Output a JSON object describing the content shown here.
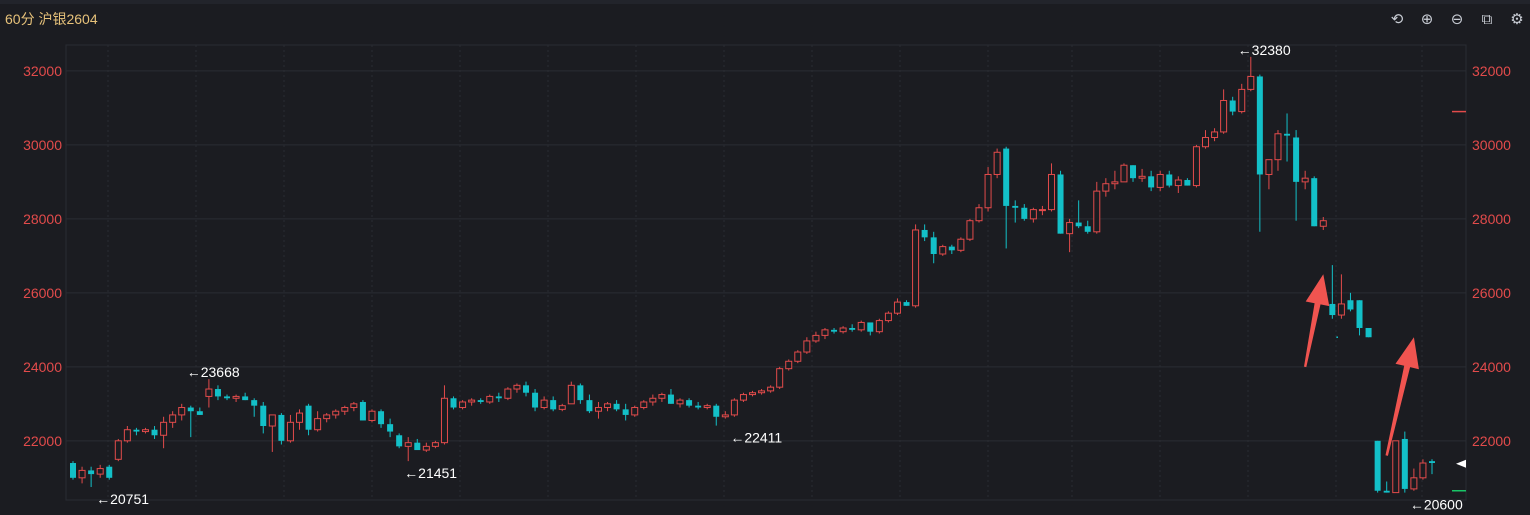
{
  "header": {
    "title": "60分 沪银2604"
  },
  "toolbar": [
    {
      "icon": "undo-icon",
      "glyph": "⟲"
    },
    {
      "icon": "zoom-in-icon",
      "glyph": "⊕"
    },
    {
      "icon": "zoom-out-icon",
      "glyph": "⊖"
    },
    {
      "icon": "window-icon",
      "glyph": "⧉"
    },
    {
      "icon": "settings-icon",
      "glyph": "⚙"
    }
  ],
  "chart_data": {
    "type": "candlestick",
    "ylim": [
      20400,
      32700
    ],
    "yticks": [
      22000,
      24000,
      26000,
      28000,
      30000,
      32000
    ],
    "colors": {
      "up": "#e24b4b",
      "down": "#13c0c8",
      "grid": "#2a2c33",
      "arrow": "#f05450"
    },
    "labels": [
      {
        "text": "←20751",
        "index": 2,
        "value": 20751,
        "pos": "below"
      },
      {
        "text": "←23668",
        "index": 12,
        "value": 23668,
        "pos": "above"
      },
      {
        "text": "←21451",
        "index": 36,
        "value": 21451,
        "pos": "below"
      },
      {
        "text": "←22411",
        "index": 72,
        "value": 22411,
        "pos": "below"
      },
      {
        "text": "←32380",
        "index": 128,
        "value": 32380,
        "pos": "above"
      },
      {
        "text": "←20600",
        "index": 147,
        "value": 20600,
        "pos": "below"
      }
    ],
    "candles": [
      [
        21400,
        21450,
        20950,
        21000
      ],
      [
        21000,
        21300,
        20850,
        21200
      ],
      [
        21200,
        21300,
        20751,
        21100
      ],
      [
        21100,
        21350,
        21000,
        21250
      ],
      [
        21300,
        21350,
        20950,
        21000
      ],
      [
        21500,
        22050,
        21450,
        22000
      ],
      [
        22000,
        22400,
        21950,
        22300
      ],
      [
        22300,
        22350,
        22150,
        22250
      ],
      [
        22250,
        22350,
        22200,
        22300
      ],
      [
        22300,
        22400,
        22050,
        22150
      ],
      [
        22150,
        22650,
        21800,
        22500
      ],
      [
        22500,
        22800,
        22350,
        22700
      ],
      [
        22700,
        23000,
        22550,
        22900
      ],
      [
        22900,
        22950,
        22100,
        22800
      ],
      [
        22800,
        22900,
        22700,
        22700
      ],
      [
        23200,
        23668,
        22900,
        23400
      ],
      [
        23400,
        23500,
        23100,
        23200
      ],
      [
        23200,
        23250,
        23100,
        23150
      ],
      [
        23150,
        23250,
        23050,
        23200
      ],
      [
        23200,
        23300,
        23100,
        23100
      ],
      [
        23100,
        23150,
        22650,
        22950
      ],
      [
        22950,
        23050,
        22200,
        22400
      ],
      [
        22400,
        22700,
        21700,
        22700
      ],
      [
        22700,
        22750,
        21900,
        22000
      ],
      [
        22000,
        22700,
        21950,
        22500
      ],
      [
        22500,
        22850,
        22300,
        22750
      ],
      [
        22950,
        23000,
        22150,
        22300
      ],
      [
        22300,
        22800,
        22250,
        22600
      ],
      [
        22600,
        22750,
        22500,
        22700
      ],
      [
        22700,
        22850,
        22600,
        22800
      ],
      [
        22800,
        22950,
        22700,
        22900
      ],
      [
        22900,
        23050,
        22800,
        23000
      ],
      [
        23050,
        23100,
        22550,
        22550
      ],
      [
        22550,
        22850,
        22500,
        22800
      ],
      [
        22800,
        22850,
        22350,
        22450
      ],
      [
        22450,
        22600,
        22100,
        22250
      ],
      [
        22150,
        22200,
        21800,
        21850
      ],
      [
        21850,
        22100,
        21451,
        21950
      ],
      [
        21950,
        22050,
        21800,
        21750
      ],
      [
        21750,
        21950,
        21700,
        21850
      ],
      [
        21850,
        22000,
        21800,
        21950
      ],
      [
        21950,
        23500,
        21900,
        23150
      ],
      [
        23150,
        23200,
        22850,
        22900
      ],
      [
        22900,
        23100,
        22850,
        23050
      ],
      [
        23050,
        23150,
        22950,
        23100
      ],
      [
        23100,
        23150,
        23000,
        23050
      ],
      [
        23050,
        23250,
        23000,
        23200
      ],
      [
        23200,
        23300,
        23050,
        23150
      ],
      [
        23150,
        23450,
        23100,
        23400
      ],
      [
        23400,
        23550,
        23300,
        23500
      ],
      [
        23500,
        23600,
        23200,
        23300
      ],
      [
        23300,
        23400,
        22800,
        22900
      ],
      [
        22900,
        23200,
        22850,
        23100
      ],
      [
        23100,
        23200,
        22800,
        22850
      ],
      [
        22850,
        23000,
        22800,
        22950
      ],
      [
        23000,
        23600,
        23000,
        23500
      ],
      [
        23500,
        23550,
        23000,
        23100
      ],
      [
        23100,
        23250,
        22750,
        22800
      ],
      [
        22800,
        23050,
        22600,
        22900
      ],
      [
        22900,
        23050,
        22800,
        23000
      ],
      [
        23000,
        23100,
        22800,
        22850
      ],
      [
        22850,
        23000,
        22550,
        22700
      ],
      [
        22700,
        22950,
        22650,
        22900
      ],
      [
        22900,
        23100,
        22850,
        23050
      ],
      [
        23050,
        23250,
        22950,
        23150
      ],
      [
        23150,
        23300,
        23050,
        23250
      ],
      [
        23250,
        23400,
        23000,
        23000
      ],
      [
        23000,
        23150,
        22900,
        23100
      ],
      [
        23100,
        23150,
        22900,
        22950
      ],
      [
        22950,
        23050,
        22850,
        22900
      ],
      [
        22900,
        23000,
        22850,
        22950
      ],
      [
        22950,
        23000,
        22411,
        22650
      ],
      [
        22650,
        22800,
        22600,
        22700
      ],
      [
        22700,
        23150,
        22650,
        23100
      ],
      [
        23100,
        23300,
        23050,
        23250
      ],
      [
        23250,
        23350,
        23200,
        23300
      ],
      [
        23300,
        23400,
        23250,
        23350
      ],
      [
        23350,
        23500,
        23300,
        23450
      ],
      [
        23450,
        24000,
        23400,
        23950
      ],
      [
        23950,
        24200,
        23900,
        24150
      ],
      [
        24150,
        24450,
        24100,
        24400
      ],
      [
        24400,
        24800,
        24350,
        24700
      ],
      [
        24700,
        24950,
        24650,
        24850
      ],
      [
        24850,
        25050,
        24750,
        25000
      ],
      [
        25000,
        25050,
        24900,
        24950
      ],
      [
        24950,
        25100,
        24900,
        25050
      ],
      [
        25050,
        25150,
        24950,
        25000
      ],
      [
        25000,
        25250,
        24950,
        25200
      ],
      [
        25200,
        25150,
        24850,
        24950
      ],
      [
        24950,
        25300,
        24900,
        25250
      ],
      [
        25250,
        25500,
        25200,
        25450
      ],
      [
        25450,
        25850,
        25400,
        25750
      ],
      [
        25750,
        25800,
        25650,
        25650
      ],
      [
        25650,
        27850,
        25600,
        27700
      ],
      [
        27700,
        27850,
        27400,
        27500
      ],
      [
        27500,
        27650,
        26800,
        27050
      ],
      [
        27050,
        27300,
        27000,
        27250
      ],
      [
        27250,
        27300,
        27050,
        27150
      ],
      [
        27150,
        27500,
        27100,
        27450
      ],
      [
        27450,
        28000,
        27400,
        27950
      ],
      [
        27950,
        28400,
        27900,
        28300
      ],
      [
        28300,
        29400,
        28200,
        29200
      ],
      [
        29200,
        29900,
        29100,
        29800
      ],
      [
        29900,
        29950,
        27200,
        28350
      ],
      [
        28350,
        28500,
        27900,
        28300
      ],
      [
        28300,
        28400,
        27950,
        28000
      ],
      [
        28000,
        28300,
        27900,
        28250
      ],
      [
        28250,
        28350,
        28100,
        28250
      ],
      [
        28250,
        29500,
        28200,
        29200
      ],
      [
        29200,
        29300,
        27600,
        27600
      ],
      [
        27600,
        28000,
        27100,
        27900
      ],
      [
        27900,
        28500,
        27750,
        27800
      ],
      [
        27800,
        27950,
        27600,
        27650
      ],
      [
        27650,
        29000,
        27600,
        28750
      ],
      [
        28750,
        29100,
        28600,
        28950
      ],
      [
        28950,
        29300,
        28800,
        29000
      ],
      [
        29000,
        29500,
        29000,
        29450
      ],
      [
        29450,
        29450,
        29000,
        29100
      ],
      [
        29100,
        29350,
        29000,
        29150
      ],
      [
        29150,
        29300,
        28750,
        28850
      ],
      [
        28850,
        29300,
        28750,
        29200
      ],
      [
        29200,
        29300,
        28850,
        28900
      ],
      [
        28900,
        29150,
        28700,
        29050
      ],
      [
        29050,
        29100,
        28900,
        28900
      ],
      [
        28900,
        30000,
        28850,
        29950
      ],
      [
        29950,
        30400,
        29900,
        30200
      ],
      [
        30200,
        30450,
        30100,
        30350
      ],
      [
        30350,
        31500,
        30300,
        31200
      ],
      [
        31200,
        31300,
        30800,
        30900
      ],
      [
        30900,
        31650,
        30850,
        31500
      ],
      [
        31500,
        32380,
        31450,
        31850
      ],
      [
        31850,
        31900,
        27650,
        29200
      ],
      [
        29200,
        29500,
        28800,
        29600
      ],
      [
        29600,
        30400,
        29300,
        30300
      ],
      [
        30300,
        30850,
        29550,
        30250
      ],
      [
        30200,
        30400,
        27950,
        29000
      ],
      [
        29000,
        29300,
        28800,
        29100
      ],
      [
        29100,
        29150,
        27800,
        27800
      ],
      [
        27800,
        28050,
        27700,
        27950
      ],
      [
        25700,
        26750,
        25300,
        25400
      ],
      [
        25400,
        26500,
        25300,
        25700
      ],
      [
        25800,
        26000,
        25500,
        25550
      ],
      [
        25800,
        25800,
        24850,
        25050
      ],
      [
        25050,
        25000,
        24800,
        24800
      ],
      [
        22000,
        22000,
        20600,
        20650
      ],
      [
        20650,
        20900,
        20600,
        20600
      ],
      [
        20600,
        22000,
        20600,
        22000
      ],
      [
        22050,
        22250,
        20600,
        20700
      ],
      [
        20700,
        21250,
        20650,
        21000
      ],
      [
        21000,
        21500,
        20950,
        21400
      ],
      [
        21450,
        21500,
        21100,
        21400
      ]
    ],
    "arrows": [
      {
        "from": [
          136,
          24000
        ],
        "to": [
          138,
          26500
        ]
      },
      {
        "from": [
          145,
          21600
        ],
        "to": [
          148,
          24800
        ]
      }
    ]
  }
}
